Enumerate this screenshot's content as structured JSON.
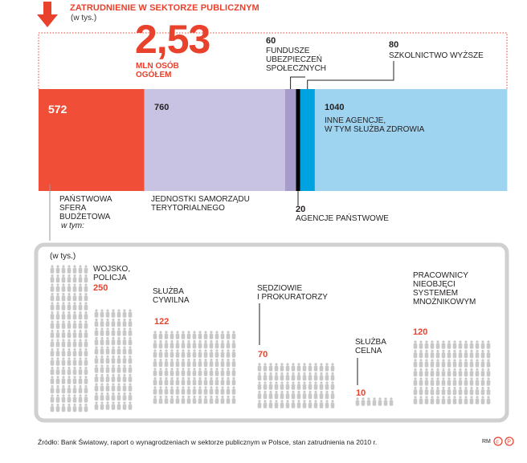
{
  "header": {
    "title": "ZATRUDNIENIE W SEKTORZE PUBLICZNYM",
    "subtitle": "(w tys.)",
    "total_value": "2,53",
    "total_label": "MLN OSÓB OGÓŁEM"
  },
  "colors": {
    "accent": "#e8412c",
    "sfera": "#f04e37",
    "jst": "#c9c3e3",
    "fundusze": "#a79cc9",
    "agencje": "#000000",
    "szkolnictwo": "#00a3e0",
    "inne": "#9fd4f1",
    "icon": "#c8c8c8"
  },
  "chart_data": [
    {
      "type": "bar",
      "title": "ZATRUDNIENIE W SEKTORZE PUBLICZNYM",
      "unit": "(w tys.)",
      "total": "2,53 MLN OSÓB OGÓŁEM",
      "stacked": true,
      "segments": [
        {
          "key": "sfera",
          "name": "PAŃSTWOWA SFERA BUDŻETOWA",
          "value": 572,
          "label": "572",
          "note": "w tym:"
        },
        {
          "key": "jst",
          "name": "JEDNOSTKI SAMORZĄDU TERYTORIALNEGO",
          "value": 760,
          "label": "760"
        },
        {
          "key": "fundusze",
          "name": "FUNDUSZE UBEZPIECZEŃ SPOŁECZNYCH",
          "value": 60,
          "label": "60"
        },
        {
          "key": "agencje",
          "name": "AGENCJE PAŃSTWOWE",
          "value": 20,
          "label": "20"
        },
        {
          "key": "szkolnictwo",
          "name": "SZKOLNICTWO WYŻSZE",
          "value": 80,
          "label": "80"
        },
        {
          "key": "inne",
          "name": "INNE AGENCJE, W TYM SŁUŻBA ZDROWIA",
          "value": 1040,
          "label": "1040"
        }
      ]
    },
    {
      "type": "pictogram",
      "unit": "(w tys.)",
      "categories": [
        "WOJSKO, POLICJA",
        "SŁUŻBA CYWILNA",
        "SĘDZIOWIE I PROKURATORZY",
        "SŁUŻBA CELNA",
        "PRACOWNICY NIEOBJĘCI SYSTEMEM MNOŻNIKOWYM"
      ],
      "values": [
        250,
        122,
        70,
        10,
        120
      ]
    }
  ],
  "labels": {
    "sfera": [
      "PAŃSTWOWA",
      "SFERA",
      "BUDŻETOWA"
    ],
    "sfera_note": "w tym:",
    "jst": [
      "JEDNOSTKI SAMORZĄDU",
      "TERYTORIALNEGO"
    ],
    "fundusze_value": "60",
    "fundusze": [
      "FUNDUSZE",
      "UBEZPIECZEŃ",
      "SPOŁECZNYCH"
    ],
    "szkolnictwo_value": "80",
    "szkolnictwo": "SZKOLNICTWO WYŻSZE",
    "agencje_value": "20",
    "agencje": "AGENCJE PAŃSTWOWE",
    "inne_value": "1040",
    "inne": [
      "INNE AGENCJE,",
      "W TYM SŁUŻBA ZDROWIA"
    ],
    "sfera_value": "572",
    "jst_value": "760"
  },
  "breakdown": {
    "unit": "(w tys.)",
    "groups": [
      {
        "label": [
          "WOJSKO,",
          "POLICJA"
        ],
        "value": "250"
      },
      {
        "label": [
          "SŁUŻBA",
          "CYWILNA"
        ],
        "value": "122"
      },
      {
        "label": [
          "SĘDZIOWIE",
          "I PROKURATORZY"
        ],
        "value": "70"
      },
      {
        "label": [
          "SŁUŻBA",
          "CELNA"
        ],
        "value": "10"
      },
      {
        "label": [
          "PRACOWNICY",
          "NIEOBJĘCI",
          "SYSTEMEM",
          "MNOŻNIKOWYM"
        ],
        "value": "120"
      }
    ]
  },
  "footer": {
    "source": "Źródło: Bank Światowy, raport o wynagrodzeniach w sektorze publicznym w Polsce, stan zatrudnienia na 2010 r.",
    "credit": "RM"
  },
  "icons": {
    "header_arrow": "arrow-down-icon",
    "person": "person-icon",
    "copyright": "copyright-icon",
    "pdp": "p-logo-icon"
  }
}
